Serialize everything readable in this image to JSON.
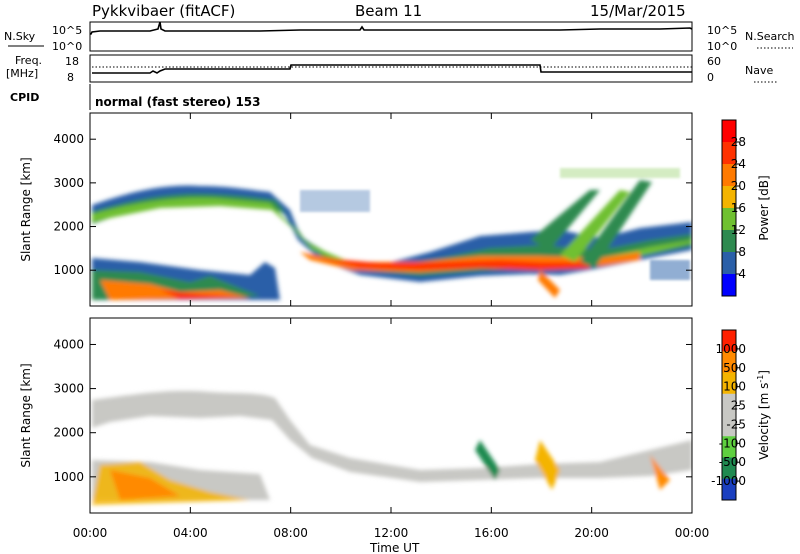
{
  "header": {
    "radar": "Pykkvibaer (fitACF)",
    "beam": "Beam 11",
    "date": "15/Mar/2015"
  },
  "panels": {
    "nsky": {
      "label": "N.Sky",
      "scale_labels": [
        "10^5",
        "10^0"
      ],
      "right_label": "N.Search",
      "right_scale_labels": [
        "10^5",
        "10^0"
      ]
    },
    "freq": {
      "label": "Freq.",
      "unit": "[MHz]",
      "left_ticks": [
        "18",
        "8"
      ],
      "right_label": "Nave",
      "right_ticks": [
        "60",
        "0"
      ]
    },
    "cpid": {
      "label": "CPID",
      "mode": "normal (fast stereo) 153"
    }
  },
  "chart_data": [
    {
      "type": "heatmap",
      "name": "Power",
      "ylabel": "Slant Range [km]",
      "yticks": [
        "4000",
        "3000",
        "2000",
        "1000"
      ],
      "ylim": [
        180,
        4600
      ],
      "xlabel": "Time UT",
      "xticks": [
        "00:00",
        "04:00",
        "08:00",
        "12:00",
        "16:00",
        "20:00",
        "00:00"
      ],
      "colorbar": {
        "label": "Power [dB]",
        "ticks": [
          "28",
          "24",
          "20",
          "16",
          "12",
          "8",
          "4"
        ],
        "colors": [
          "#0000ff",
          "#2a5fa8",
          "#2e8a50",
          "#6fc030",
          "#f4b400",
          "#ff7a00",
          "#ff3200",
          "#ff0000"
        ]
      }
    },
    {
      "type": "heatmap",
      "name": "Velocity",
      "ylabel": "Slant Range [km]",
      "yticks": [
        "4000",
        "3000",
        "2000",
        "1000"
      ],
      "ylim": [
        180,
        4600
      ],
      "xlabel": "Time UT",
      "xticks": [
        "00:00",
        "04:00",
        "08:00",
        "12:00",
        "16:00",
        "20:00",
        "00:00"
      ],
      "colorbar": {
        "label": "Velocity [m s",
        "label_sup": "-1",
        "ticks": [
          "1000",
          "500",
          "100",
          "25",
          "-25",
          "-100",
          "-500",
          "-1000"
        ],
        "colors": [
          "#1a3fc0",
          "#1f8a50",
          "#5fd040",
          "#c8c8c4",
          "#c8c8c4",
          "#f4b400",
          "#ff8a00",
          "#ff2000"
        ]
      }
    }
  ],
  "xaxis_title": "Time UT"
}
